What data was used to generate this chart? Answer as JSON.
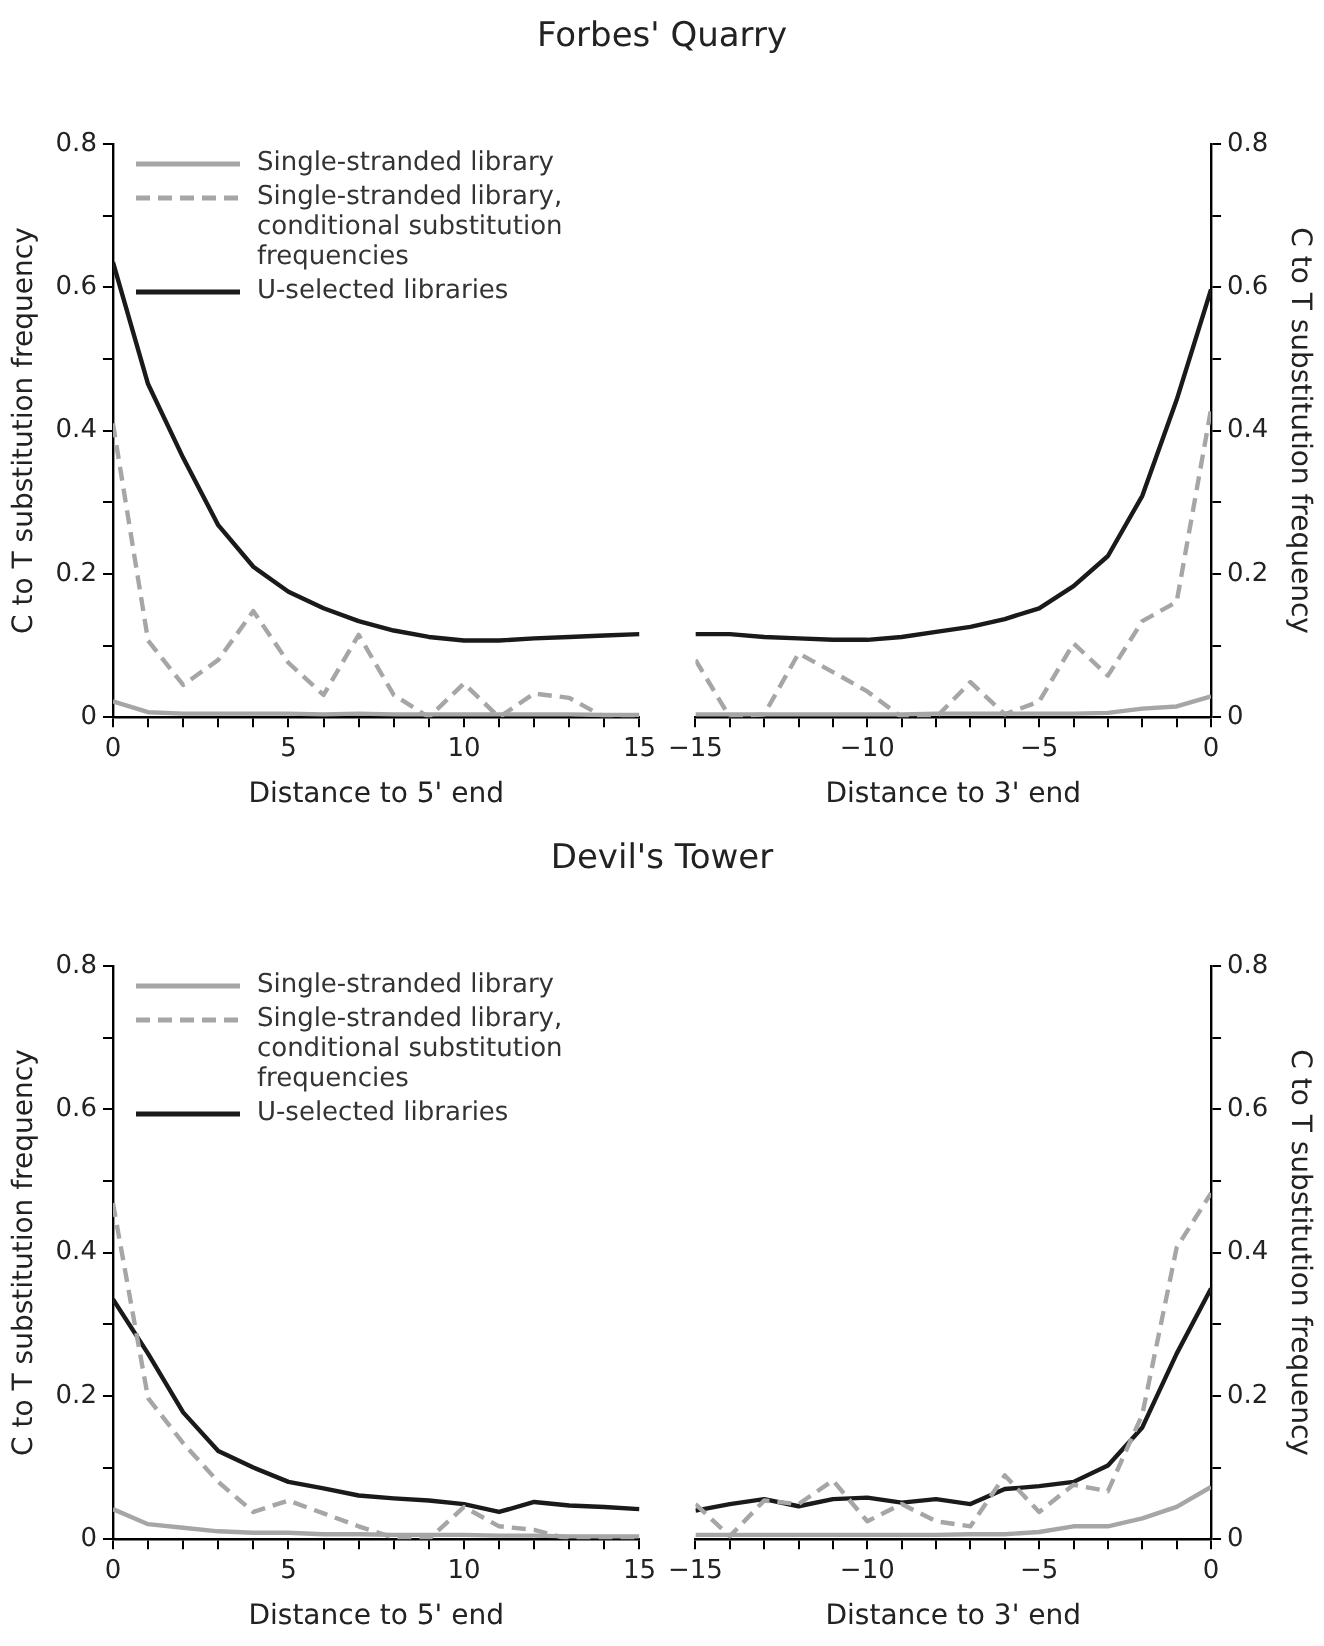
{
  "chart_data": [
    {
      "type": "line",
      "title": "Forbes' Quarry",
      "xlabel": "Distance to 5' end",
      "ylabel": "C to T substitution frequency",
      "marker": "none",
      "legend": "top left",
      "xlim": [
        0,
        15
      ],
      "xticks": [
        0,
        {
          "value": 1,
          "label": null
        },
        {
          "value": 2,
          "label": null
        },
        {
          "value": 3,
          "label": null
        },
        {
          "value": 4,
          "label": null
        },
        5,
        {
          "value": 6,
          "label": null
        },
        {
          "value": 7,
          "label": null
        },
        {
          "value": 8,
          "label": null
        },
        {
          "value": 9,
          "label": null
        },
        10,
        {
          "value": 11,
          "label": null
        },
        {
          "value": 12,
          "label": null
        },
        {
          "value": 13,
          "label": null
        },
        {
          "value": 14,
          "label": null
        },
        15
      ],
      "ylim": [
        0,
        0.8
      ],
      "yticks": [
        0,
        {
          "value": 0.1,
          "label": null
        },
        0.2,
        {
          "value": 0.3,
          "label": null
        },
        0.4,
        {
          "value": 0.5,
          "label": null
        },
        0.6,
        {
          "value": 0.7,
          "label": null
        },
        0.8
      ],
      "x": [
        0,
        1,
        2,
        3,
        4,
        5,
        6,
        7,
        8,
        9,
        10,
        11,
        12,
        13,
        14,
        15
      ],
      "series": [
        {
          "name": "Single-stranded library",
          "color": "#a6a6a6",
          "line_style": "solid",
          "values": [
            0.022,
            0.007,
            0.005,
            0.005,
            0.005,
            0.005,
            0.004,
            0.005,
            0.004,
            0.004,
            0.004,
            0.004,
            0.004,
            0.004,
            0.003,
            0.003
          ]
        },
        {
          "name": "Single-stranded library, conditional substitution frequencies",
          "color": "#a6a6a6",
          "line_style": "dashed",
          "values": [
            0.41,
            0.107,
            0.045,
            0.08,
            0.148,
            0.076,
            0.031,
            0.115,
            0.031,
            0,
            0.047,
            0,
            0.033,
            0.027,
            0,
            0
          ]
        },
        {
          "name": "U-selected libraries",
          "color": "#1a1a1a",
          "line_style": "solid",
          "values": [
            0.635,
            0.465,
            0.362,
            0.268,
            0.21,
            0.175,
            0.152,
            0.134,
            0.121,
            0.112,
            0.107,
            0.107,
            0.11,
            0.112,
            0.114,
            0.116
          ]
        }
      ]
    },
    {
      "type": "line",
      "xlabel": "Distance to 3' end",
      "y2label": "C to T substitution frequency",
      "marker": "none",
      "xlim": [
        -15,
        0
      ],
      "xticks": [
        {
          "value": -15,
          "label": "−15"
        },
        {
          "value": -14,
          "label": null
        },
        {
          "value": -13,
          "label": null
        },
        {
          "value": -12,
          "label": null
        },
        {
          "value": -11,
          "label": null
        },
        {
          "value": -10,
          "label": "−10"
        },
        {
          "value": -9,
          "label": null
        },
        {
          "value": -8,
          "label": null
        },
        {
          "value": -7,
          "label": null
        },
        {
          "value": -6,
          "label": null
        },
        {
          "value": -5,
          "label": "−5"
        },
        {
          "value": -4,
          "label": null
        },
        {
          "value": -3,
          "label": null
        },
        {
          "value": -2,
          "label": null
        },
        {
          "value": -1,
          "label": null
        },
        0
      ],
      "y2lim": [
        0,
        0.8
      ],
      "y2ticks": [
        0,
        {
          "value": 0.1,
          "label": null
        },
        0.2,
        {
          "value": 0.3,
          "label": null
        },
        0.4,
        {
          "value": 0.5,
          "label": null
        },
        0.6,
        {
          "value": 0.7,
          "label": null
        },
        0.8
      ],
      "x": [
        -15,
        -14,
        -13,
        -12,
        -11,
        -10,
        -9,
        -8,
        -7,
        -6,
        -5,
        -4,
        -3,
        -2,
        -1,
        0
      ],
      "series": [
        {
          "color": "#a6a6a6",
          "line_style": "solid",
          "axis": "y2",
          "values": [
            0.004,
            0.004,
            0.004,
            0.004,
            0.004,
            0.004,
            0.004,
            0.005,
            0.005,
            0.005,
            0.005,
            0.005,
            0.006,
            0.012,
            0.015,
            0.029
          ]
        },
        {
          "color": "#a6a6a6",
          "line_style": "dashed",
          "axis": "y2",
          "values": [
            0.08,
            0,
            0.004,
            0.089,
            0.063,
            0.036,
            0,
            0,
            0.049,
            0.004,
            0.022,
            0.103,
            0.058,
            0.134,
            0.161,
            0.43
          ]
        },
        {
          "color": "#1a1a1a",
          "line_style": "solid",
          "axis": "y2",
          "values": [
            0.116,
            0.116,
            0.112,
            0.11,
            0.108,
            0.108,
            0.112,
            0.119,
            0.126,
            0.137,
            0.152,
            0.183,
            0.225,
            0.309,
            0.443,
            0.597
          ]
        }
      ]
    },
    {
      "type": "line",
      "title": "Devil's Tower",
      "xlabel": "Distance to 5' end",
      "ylabel": "C to T substitution frequency",
      "marker": "none",
      "legend": "top left",
      "xlim": [
        0,
        15
      ],
      "xticks": [
        0,
        {
          "value": 1,
          "label": null
        },
        {
          "value": 2,
          "label": null
        },
        {
          "value": 3,
          "label": null
        },
        {
          "value": 4,
          "label": null
        },
        5,
        {
          "value": 6,
          "label": null
        },
        {
          "value": 7,
          "label": null
        },
        {
          "value": 8,
          "label": null
        },
        {
          "value": 9,
          "label": null
        },
        10,
        {
          "value": 11,
          "label": null
        },
        {
          "value": 12,
          "label": null
        },
        {
          "value": 13,
          "label": null
        },
        {
          "value": 14,
          "label": null
        },
        15
      ],
      "ylim": [
        0,
        0.8
      ],
      "yticks": [
        0,
        {
          "value": 0.1,
          "label": null
        },
        0.2,
        {
          "value": 0.3,
          "label": null
        },
        0.4,
        {
          "value": 0.5,
          "label": null
        },
        0.6,
        {
          "value": 0.7,
          "label": null
        },
        0.8
      ],
      "x": [
        0,
        1,
        2,
        3,
        4,
        5,
        6,
        7,
        8,
        9,
        10,
        11,
        12,
        13,
        14,
        15
      ],
      "series": [
        {
          "name": "Single-stranded library",
          "color": "#a6a6a6",
          "line_style": "solid",
          "values": [
            0.042,
            0.021,
            0.016,
            0.011,
            0.009,
            0.009,
            0.007,
            0.007,
            0.006,
            0.006,
            0.006,
            0.005,
            0.005,
            0.004,
            0.004,
            0.004
          ]
        },
        {
          "name": "Single-stranded library, conditional substitution frequencies",
          "color": "#a6a6a6",
          "line_style": "dashed",
          "values": [
            0.469,
            0.197,
            0.134,
            0.08,
            0.038,
            0.054,
            0.036,
            0.018,
            0.002,
            0,
            0.045,
            0.018,
            0.013,
            0,
            0,
            0
          ]
        },
        {
          "name": "U-selected libraries",
          "color": "#1a1a1a",
          "line_style": "solid",
          "values": [
            0.335,
            0.259,
            0.177,
            0.123,
            0.1,
            0.08,
            0.071,
            0.061,
            0.057,
            0.054,
            0.049,
            0.038,
            0.052,
            0.047,
            0.045,
            0.042
          ]
        }
      ]
    },
    {
      "type": "line",
      "xlabel": "Distance to 3' end",
      "y2label": "C to T substitution frequency",
      "marker": "none",
      "xlim": [
        -15,
        0
      ],
      "xticks": [
        {
          "value": -15,
          "label": "−15"
        },
        {
          "value": -14,
          "label": null
        },
        {
          "value": -13,
          "label": null
        },
        {
          "value": -12,
          "label": null
        },
        {
          "value": -11,
          "label": null
        },
        {
          "value": -10,
          "label": "−10"
        },
        {
          "value": -9,
          "label": null
        },
        {
          "value": -8,
          "label": null
        },
        {
          "value": -7,
          "label": null
        },
        {
          "value": -6,
          "label": null
        },
        {
          "value": -5,
          "label": "−5"
        },
        {
          "value": -4,
          "label": null
        },
        {
          "value": -3,
          "label": null
        },
        {
          "value": -2,
          "label": null
        },
        {
          "value": -1,
          "label": null
        },
        0
      ],
      "y2lim": [
        0,
        0.8
      ],
      "y2ticks": [
        0,
        {
          "value": 0.1,
          "label": null
        },
        0.2,
        {
          "value": 0.3,
          "label": null
        },
        0.4,
        {
          "value": 0.5,
          "label": null
        },
        0.6,
        {
          "value": 0.7,
          "label": null
        },
        0.8
      ],
      "x": [
        -15,
        -14,
        -13,
        -12,
        -11,
        -10,
        -9,
        -8,
        -7,
        -6,
        -5,
        -4,
        -3,
        -2,
        -1,
        0
      ],
      "series": [
        {
          "color": "#a6a6a6",
          "line_style": "solid",
          "axis": "y2",
          "values": [
            0.006,
            0.006,
            0.006,
            0.006,
            0.006,
            0.006,
            0.006,
            0.006,
            0.007,
            0.007,
            0.01,
            0.018,
            0.018,
            0.029,
            0.045,
            0.073
          ]
        },
        {
          "color": "#a6a6a6",
          "line_style": "dashed",
          "axis": "y2",
          "values": [
            0.049,
            0.004,
            0.054,
            0.049,
            0.082,
            0.025,
            0.049,
            0.025,
            0.018,
            0.089,
            0.038,
            0.076,
            0.067,
            0.174,
            0.407,
            0.483
          ]
        },
        {
          "color": "#1a1a1a",
          "line_style": "solid",
          "axis": "y2",
          "values": [
            0.04,
            0.049,
            0.056,
            0.046,
            0.056,
            0.058,
            0.051,
            0.056,
            0.049,
            0.07,
            0.074,
            0.08,
            0.103,
            0.156,
            0.259,
            0.35
          ]
        }
      ]
    }
  ]
}
